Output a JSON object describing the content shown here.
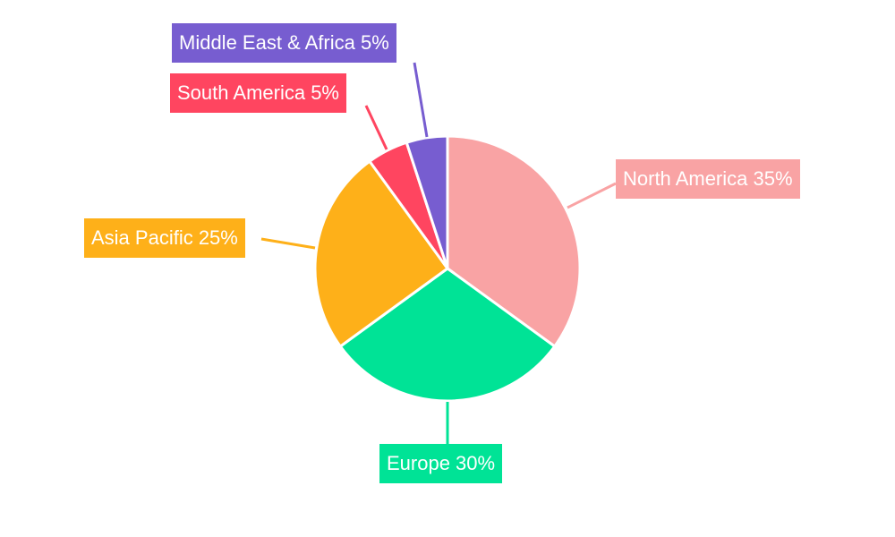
{
  "chart_data": {
    "type": "pie",
    "categories": [
      "North America",
      "Europe",
      "Asia Pacific",
      "South America",
      "Middle East & Africa"
    ],
    "values": [
      35,
      30,
      25,
      5,
      5
    ],
    "unit": "%",
    "labels": [
      "North America 35%",
      "Europe 30%",
      "Asia Pacific 25%",
      "South America 5%",
      "Middle East & Africa 5%"
    ],
    "colors": [
      "#f9a3a4",
      "#00e396",
      "#feb019",
      "#ff4560",
      "#775dd0"
    ],
    "start_angle": "top, clockwise",
    "legend": "none"
  }
}
